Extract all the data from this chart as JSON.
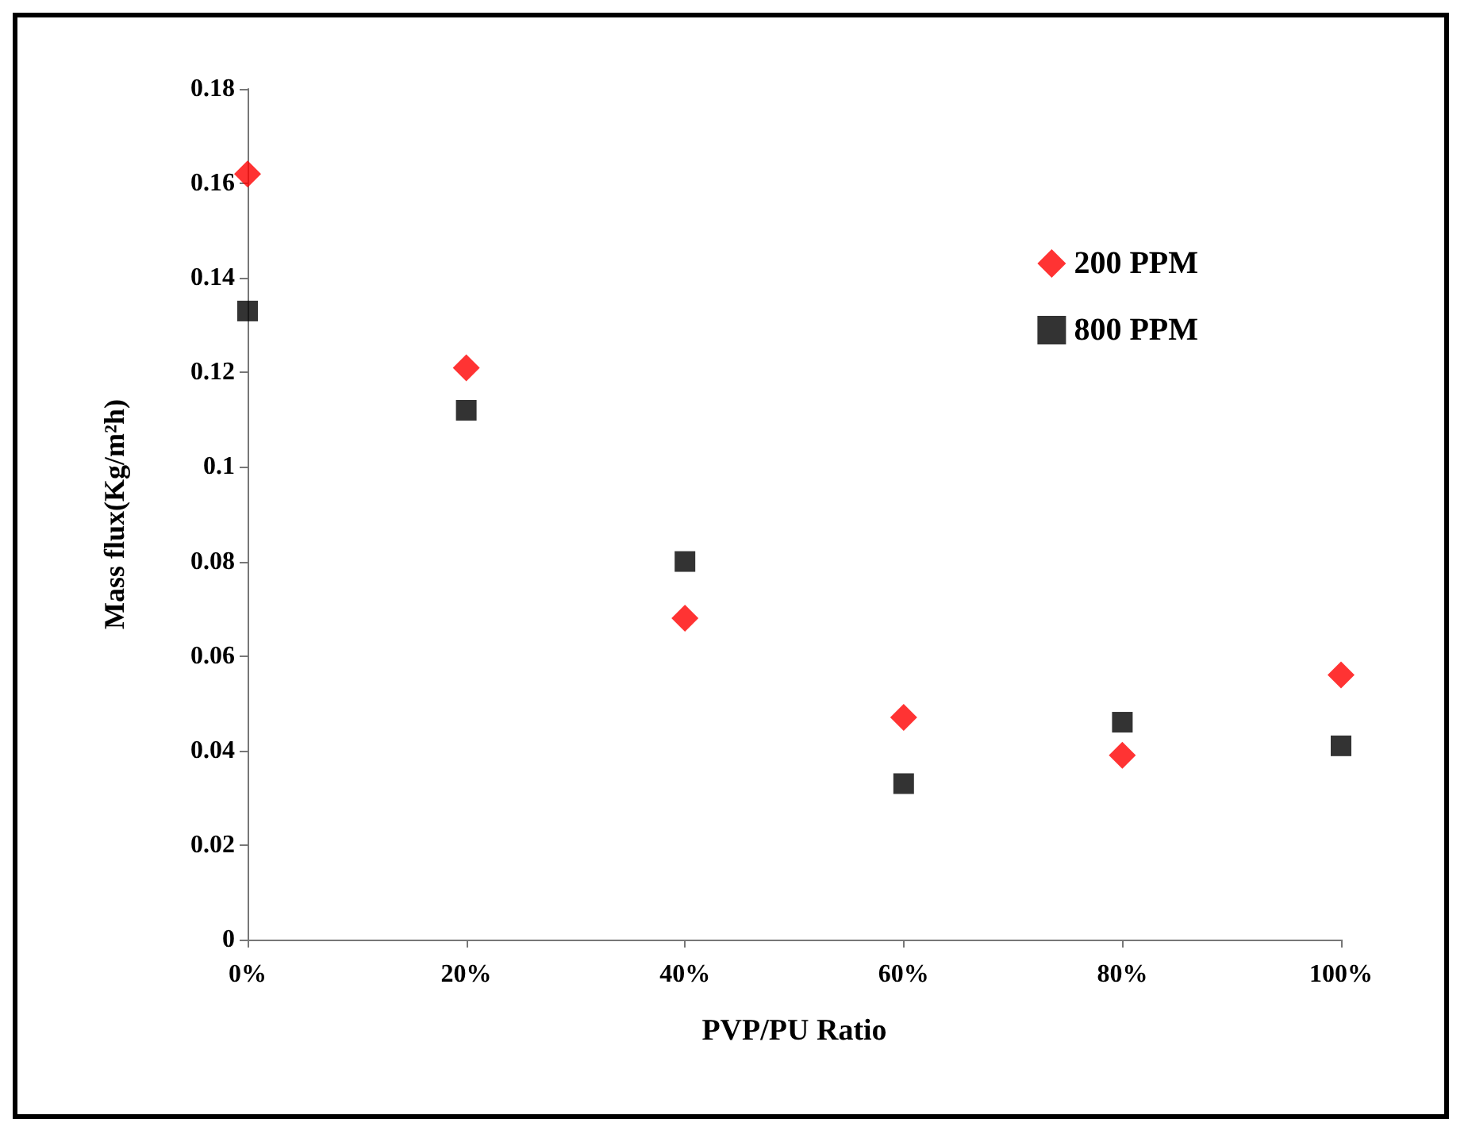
{
  "chart_data": {
    "type": "scatter",
    "xlabel": "PVP/PU Ratio",
    "ylabel": "Mass flux(Kg/m²h)",
    "x": [
      0,
      20,
      40,
      60,
      80,
      100
    ],
    "series": [
      {
        "name": "200 PPM",
        "color": "#ff0000",
        "marker": "diamond",
        "values": [
          0.162,
          0.121,
          0.068,
          0.047,
          0.039,
          0.056
        ]
      },
      {
        "name": "800 PPM",
        "color": "#000000",
        "marker": "square",
        "values": [
          0.133,
          0.112,
          0.08,
          0.033,
          0.046,
          0.041
        ]
      }
    ],
    "xlim": [
      0,
      100
    ],
    "xticks": [
      {
        "value": 0,
        "label": "0%"
      },
      {
        "value": 20,
        "label": "20%"
      },
      {
        "value": 40,
        "label": "40%"
      },
      {
        "value": 60,
        "label": "60%"
      },
      {
        "value": 80,
        "label": "80%"
      },
      {
        "value": 100,
        "label": "100%"
      }
    ],
    "ylim": [
      0,
      0.18
    ],
    "yticks": [
      {
        "value": 0,
        "label": "0"
      },
      {
        "value": 0.02,
        "label": "0.02"
      },
      {
        "value": 0.04,
        "label": "0.04"
      },
      {
        "value": 0.06,
        "label": "0.06"
      },
      {
        "value": 0.08,
        "label": "0.08"
      },
      {
        "value": 0.1,
        "label": "0.1"
      },
      {
        "value": 0.12,
        "label": "0.12"
      },
      {
        "value": 0.14,
        "label": "0.14"
      },
      {
        "value": 0.16,
        "label": "0.16"
      },
      {
        "value": 0.18,
        "label": "0.18"
      }
    ],
    "grid": false,
    "legend": "top right"
  }
}
